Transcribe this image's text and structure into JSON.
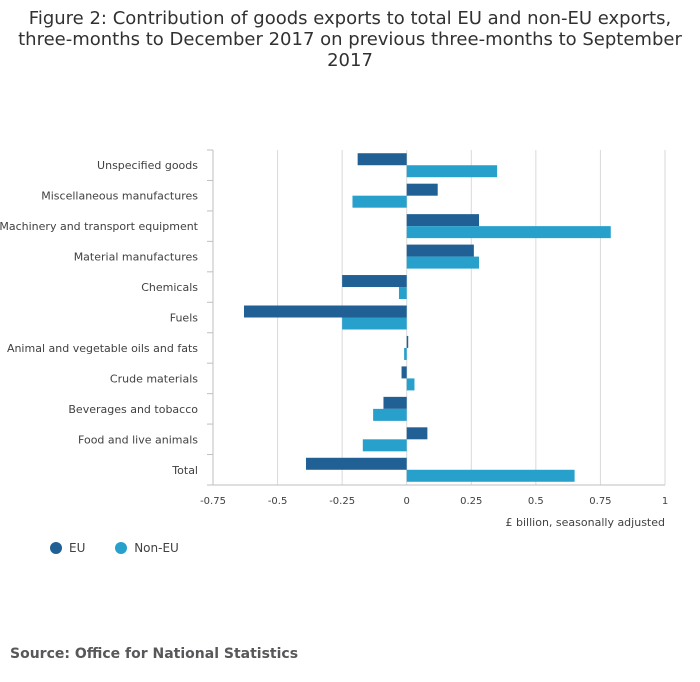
{
  "title_lines": [
    "Figure 2: Contribution of goods exports to total EU and non-EU exports,",
    "three-months to December 2017 on previous three-months to September",
    "2017"
  ],
  "source": "Source: Office for National Statistics",
  "colors": {
    "eu": "#206095",
    "non_eu": "#27a0cc",
    "grid": "#d9d9d9",
    "axis": "#bfbfbf"
  },
  "legend": {
    "eu": "EU",
    "non_eu": "Non-EU"
  },
  "chart_data": {
    "type": "bar",
    "orientation": "horizontal",
    "categories": [
      "Unspecified goods",
      "Miscellaneous manufactures",
      "Machinery and transport equipment",
      "Material manufactures",
      "Chemicals",
      "Fuels",
      "Animal and vegetable oils and fats",
      "Crude materials",
      "Beverages and tobacco",
      "Food and live animals",
      "Total"
    ],
    "series": [
      {
        "name": "EU",
        "values": [
          -0.19,
          0.12,
          0.28,
          0.26,
          -0.25,
          -0.63,
          0.0,
          -0.02,
          -0.09,
          0.08,
          -0.39
        ]
      },
      {
        "name": "Non-EU",
        "values": [
          0.35,
          -0.21,
          0.79,
          0.28,
          -0.03,
          -0.25,
          -0.01,
          0.03,
          -0.13,
          -0.17,
          0.65
        ]
      }
    ],
    "xlim": [
      -0.75,
      1
    ],
    "ticks": [
      -0.75,
      -0.5,
      -0.25,
      0,
      0.25,
      0.5,
      0.75,
      1
    ],
    "tick_labels": [
      "-0.75",
      "-0.5",
      "-0.25",
      "0",
      "0.25",
      "0.5",
      "0.75",
      "1"
    ],
    "xlabel": "£ billion, seasonally adjusted",
    "ylabel": "",
    "legend_position": "bottom-left",
    "grid": true
  }
}
